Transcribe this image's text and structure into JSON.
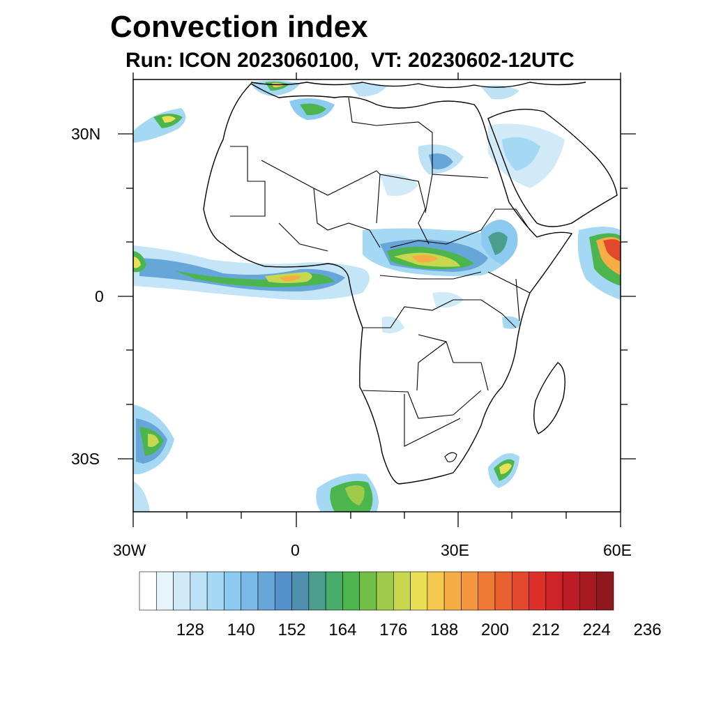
{
  "title": "Convection index",
  "subtitle": "Run: ICON 2023060100,  VT: 20230602-12UTC",
  "lon_ticks": [
    "30W",
    "0",
    "30E",
    "60E"
  ],
  "lat_ticks": [
    "30N",
    "0",
    "30S"
  ],
  "colorbar": {
    "labels": [
      "128",
      "140",
      "152",
      "164",
      "176",
      "188",
      "200",
      "212",
      "224",
      "236"
    ],
    "colors": [
      "#ffffff",
      "#e8f4fb",
      "#d0eaf8",
      "#bde2f6",
      "#a5d8f3",
      "#8ccbef",
      "#7ab9e5",
      "#67a6d9",
      "#5592cb",
      "#4f8fb0",
      "#4a9f8c",
      "#48ac6a",
      "#4cb54e",
      "#72bf48",
      "#a0cb4a",
      "#c7d84e",
      "#eadf55",
      "#f4c94e",
      "#f6ad45",
      "#f59640",
      "#ef7a36",
      "#e8612f",
      "#e2482c",
      "#db3129",
      "#ce2327",
      "#bd1c25",
      "#a81a22",
      "#8f181e"
    ]
  }
}
